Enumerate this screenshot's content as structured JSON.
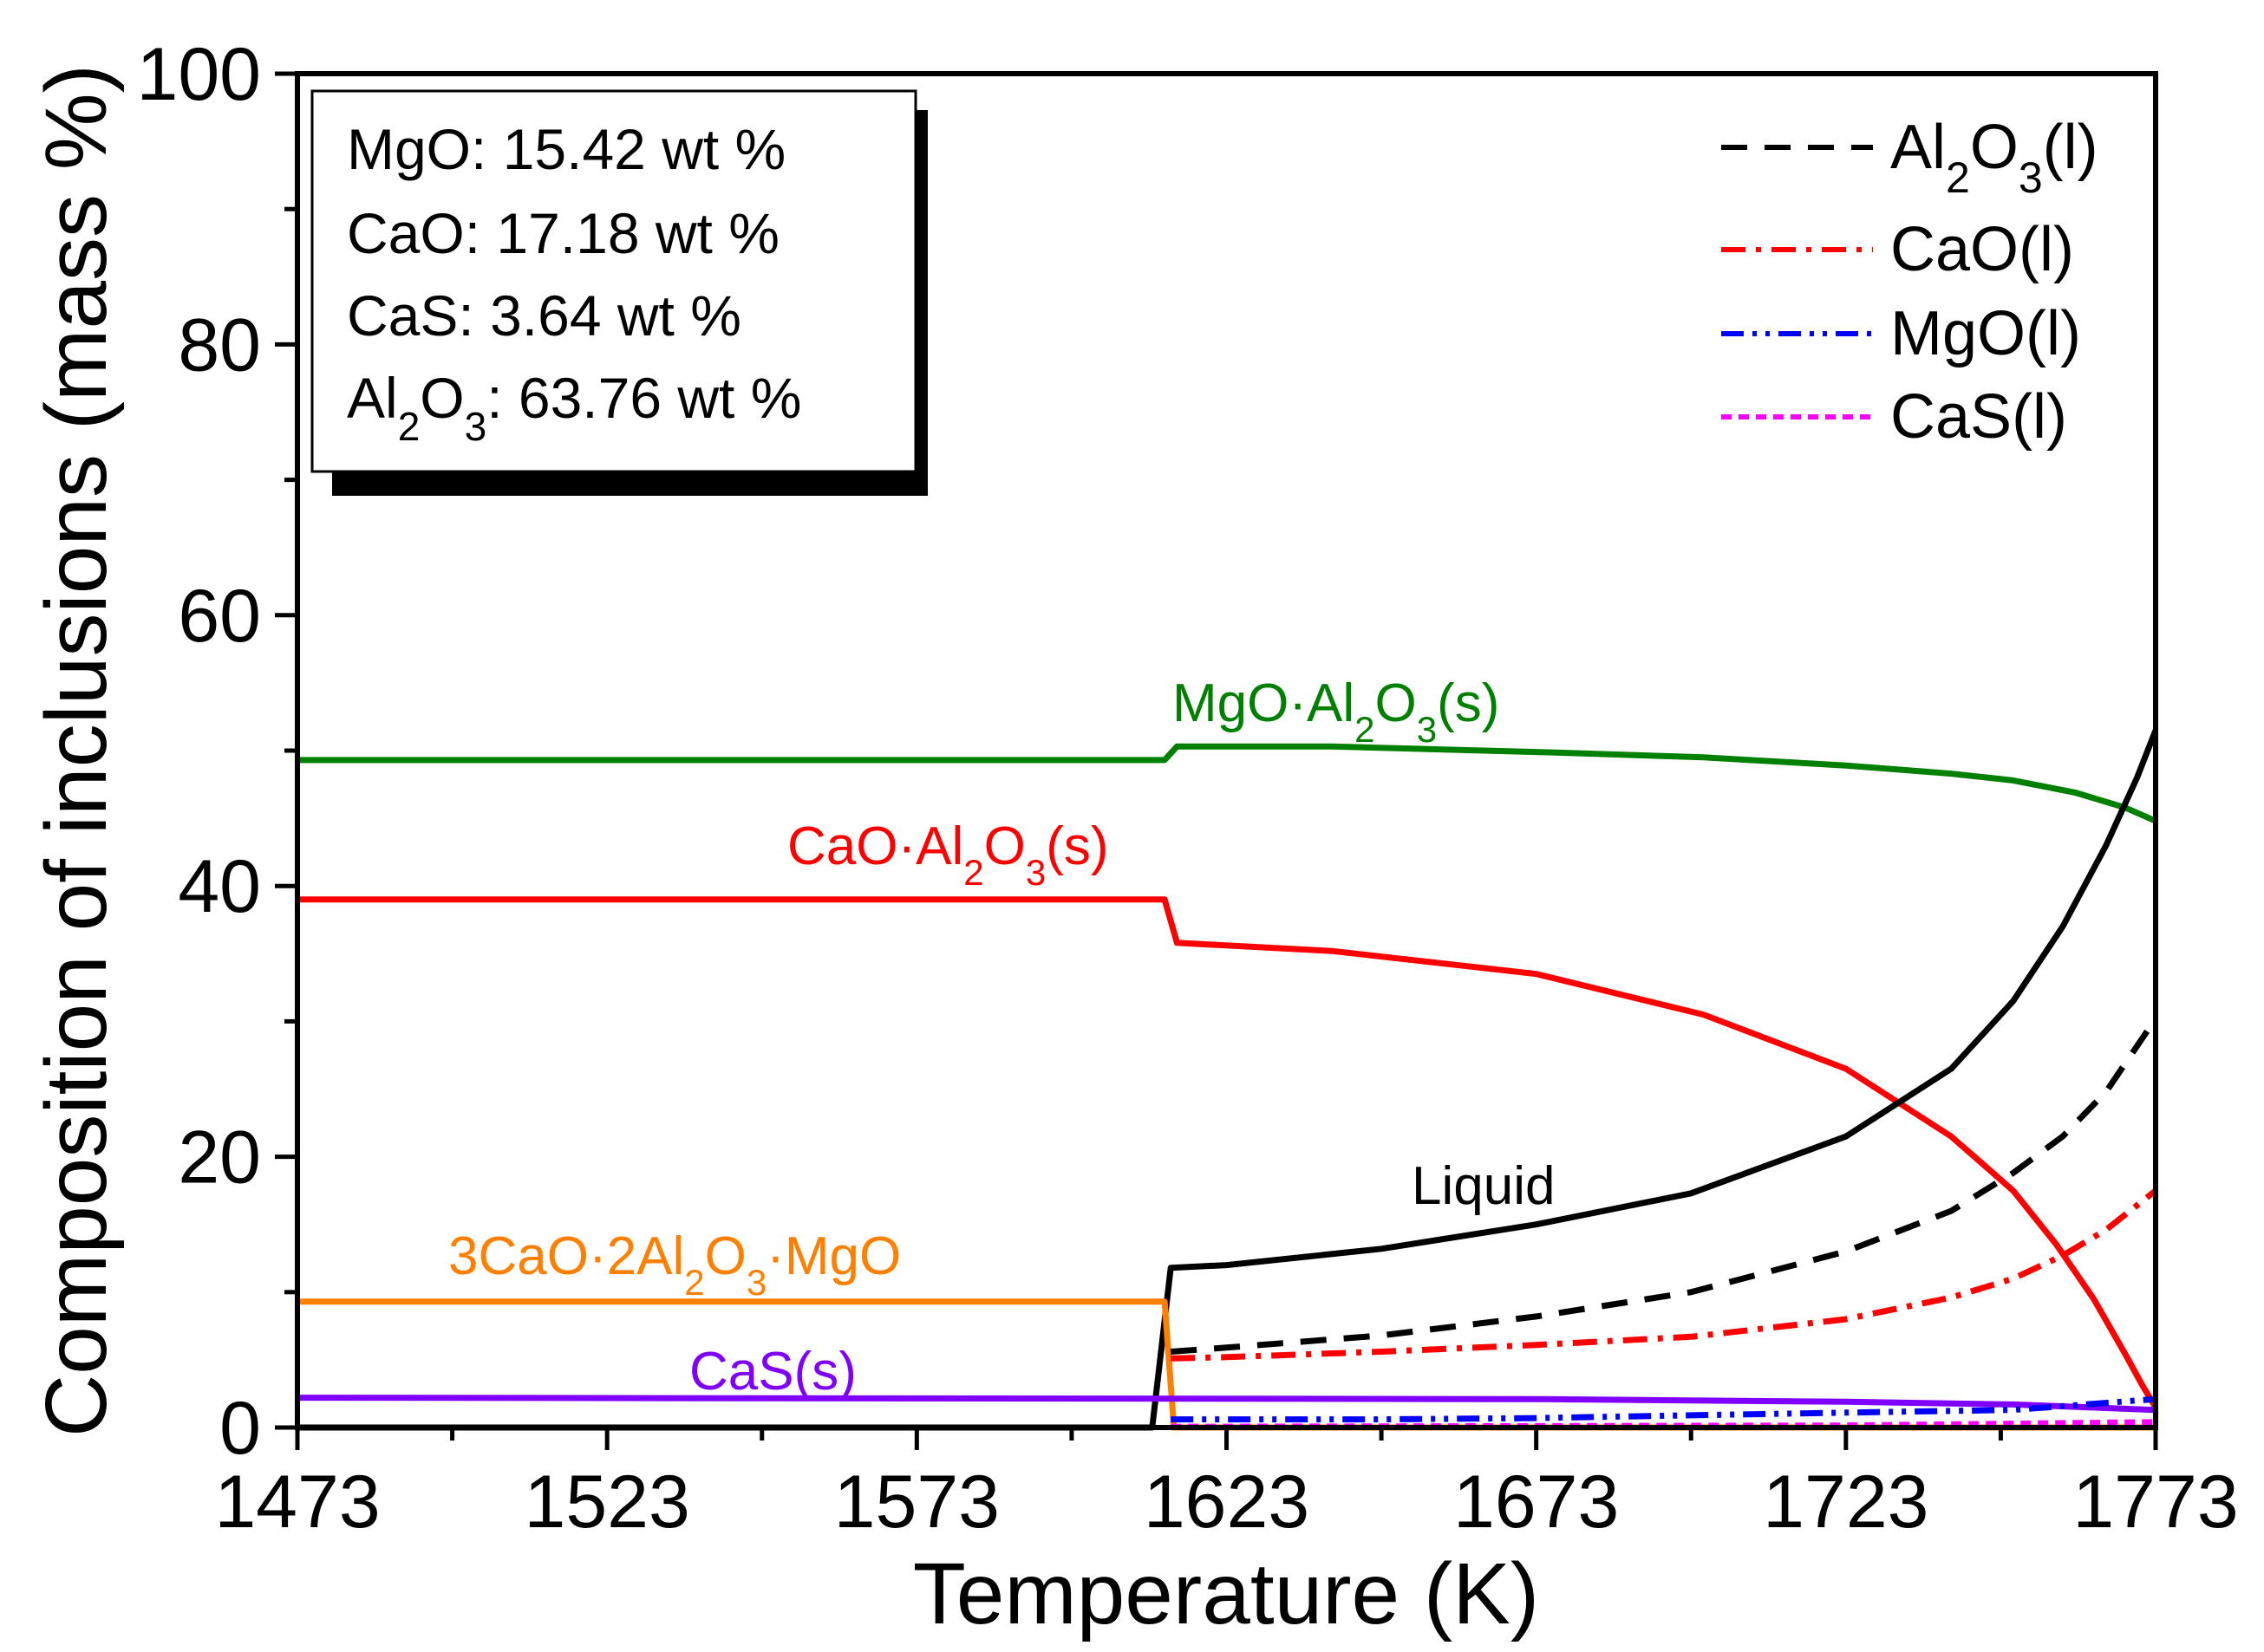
{
  "chart_data": {
    "type": "line",
    "xlabel": "Temperature (K)",
    "ylabel": "Composition of inclusions (mass %)",
    "xlim": [
      1473,
      1773
    ],
    "ylim": [
      0,
      100
    ],
    "x_ticks": [
      1473,
      1523,
      1573,
      1623,
      1673,
      1723,
      1773
    ],
    "y_ticks": [
      0,
      20,
      40,
      60,
      80,
      100
    ],
    "composition_box": [
      {
        "species": "MgO",
        "label": "MgO: 15.42 wt %"
      },
      {
        "species": "CaO",
        "label": "CaO: 17.18 wt %"
      },
      {
        "species": "CaS",
        "label": "CaS: 3.64 wt %"
      },
      {
        "species": "Al2O3",
        "label_base": "Al",
        "sub1": "2",
        "mid": "O",
        "sub2": "3",
        "label_rest": ": 63.76 wt %"
      }
    ],
    "legend": [
      {
        "key": "al2o3_l",
        "base": "Al",
        "sub1": "2",
        "mid": "O",
        "sub2": "3",
        "rest": "(l)",
        "color": "#000000",
        "dash": "30,20"
      },
      {
        "key": "cao_l",
        "text": "CaO(l)",
        "color": "#ff0000",
        "dash": "28,12,6,12"
      },
      {
        "key": "mgo_l",
        "text": "MgO(l)",
        "color": "#0000ff",
        "dash": "26,10,5,10,5,10"
      },
      {
        "key": "cas_l",
        "text": "CaS(l)",
        "color": "#ff00ff",
        "dash": "12,8"
      }
    ],
    "annotations": [
      {
        "key": "spinel",
        "parts": [
          "MgO·Al",
          "2",
          "O",
          "3",
          "(s)"
        ],
        "color": "#008000"
      },
      {
        "key": "ca",
        "parts": [
          "CaO·Al",
          "2",
          "O",
          "3",
          "(s)"
        ],
        "color": "#ff0000"
      },
      {
        "key": "liquid",
        "text": "Liquid",
        "color": "#000000"
      },
      {
        "key": "c3a2m",
        "parts": [
          "3CaO·2Al",
          "2",
          "O",
          "3",
          "·MgO"
        ],
        "color": "#ff8000"
      },
      {
        "key": "cas_s",
        "text": "CaS(s)",
        "color": "#8000ff"
      }
    ],
    "series": [
      {
        "name": "MgO·Al2O3(s)",
        "color": "#008000",
        "style": "solid",
        "points": [
          [
            1473,
            49.3
          ],
          [
            1613,
            49.3
          ],
          [
            1615,
            50.3
          ],
          [
            1640,
            50.3
          ],
          [
            1673,
            49.9
          ],
          [
            1700,
            49.5
          ],
          [
            1723,
            48.9
          ],
          [
            1740,
            48.3
          ],
          [
            1750,
            47.8
          ],
          [
            1760,
            46.9
          ],
          [
            1768,
            45.8
          ],
          [
            1773,
            44.8
          ]
        ]
      },
      {
        "name": "CaO·Al2O3(s)",
        "color": "#ff0000",
        "style": "solid",
        "points": [
          [
            1473,
            39
          ],
          [
            1613,
            39
          ],
          [
            1615,
            35.8
          ],
          [
            1640,
            35.2
          ],
          [
            1673,
            33.5
          ],
          [
            1700,
            30.5
          ],
          [
            1723,
            26.5
          ],
          [
            1740,
            21.5
          ],
          [
            1750,
            17.5
          ],
          [
            1757,
            13.5
          ],
          [
            1763,
            9.5
          ],
          [
            1768,
            5.5
          ],
          [
            1771,
            3
          ],
          [
            1773,
            1.5
          ]
        ]
      },
      {
        "name": "Liquid",
        "color": "#000000",
        "style": "solid",
        "points": [
          [
            1473,
            0
          ],
          [
            1611,
            0
          ],
          [
            1614,
            11.8
          ],
          [
            1623,
            12
          ],
          [
            1648,
            13.2
          ],
          [
            1673,
            15
          ],
          [
            1698,
            17.3
          ],
          [
            1723,
            21.5
          ],
          [
            1740,
            26.5
          ],
          [
            1750,
            31.5
          ],
          [
            1758,
            37
          ],
          [
            1765,
            43
          ],
          [
            1770,
            48
          ],
          [
            1773,
            51.5
          ]
        ]
      },
      {
        "name": "3CaO·2Al2O3·MgO",
        "color": "#ff8000",
        "style": "solid",
        "points": [
          [
            1473,
            9.3
          ],
          [
            1613,
            9.3
          ],
          [
            1614.5,
            0
          ],
          [
            1773,
            0
          ]
        ]
      },
      {
        "name": "CaS(s)",
        "color": "#8000ff",
        "style": "solid",
        "points": [
          [
            1473,
            2.2
          ],
          [
            1673,
            2.1
          ],
          [
            1723,
            1.9
          ],
          [
            1750,
            1.7
          ],
          [
            1773,
            1.3
          ]
        ]
      },
      {
        "name": "Al2O3(l)",
        "color": "#000000",
        "style": "dash",
        "points": [
          [
            1614,
            5.6
          ],
          [
            1623,
            5.9
          ],
          [
            1648,
            6.8
          ],
          [
            1673,
            8.2
          ],
          [
            1698,
            10
          ],
          [
            1723,
            13
          ],
          [
            1740,
            16
          ],
          [
            1750,
            18.8
          ],
          [
            1758,
            21.5
          ],
          [
            1765,
            24.8
          ],
          [
            1773,
            30.2
          ]
        ]
      },
      {
        "name": "CaO(l)",
        "color": "#ff0000",
        "style": "dashdot",
        "points": [
          [
            1614,
            5.1
          ],
          [
            1623,
            5.2
          ],
          [
            1648,
            5.6
          ],
          [
            1673,
            6.1
          ],
          [
            1698,
            6.7
          ],
          [
            1723,
            8
          ],
          [
            1740,
            9.6
          ],
          [
            1750,
            11
          ],
          [
            1758,
            12.7
          ],
          [
            1765,
            14.6
          ],
          [
            1773,
            17.5
          ]
        ]
      },
      {
        "name": "MgO(l)",
        "color": "#0000ff",
        "style": "dashdotdot",
        "points": [
          [
            1614,
            0.6
          ],
          [
            1648,
            0.6
          ],
          [
            1673,
            0.7
          ],
          [
            1698,
            0.9
          ],
          [
            1723,
            1.1
          ],
          [
            1750,
            1.3
          ],
          [
            1773,
            2.1
          ]
        ]
      },
      {
        "name": "CaS(l)",
        "color": "#ff00ff",
        "style": "dot",
        "points": [
          [
            1614,
            0.05
          ],
          [
            1673,
            0.1
          ],
          [
            1723,
            0.15
          ],
          [
            1773,
            0.4
          ]
        ]
      }
    ]
  }
}
